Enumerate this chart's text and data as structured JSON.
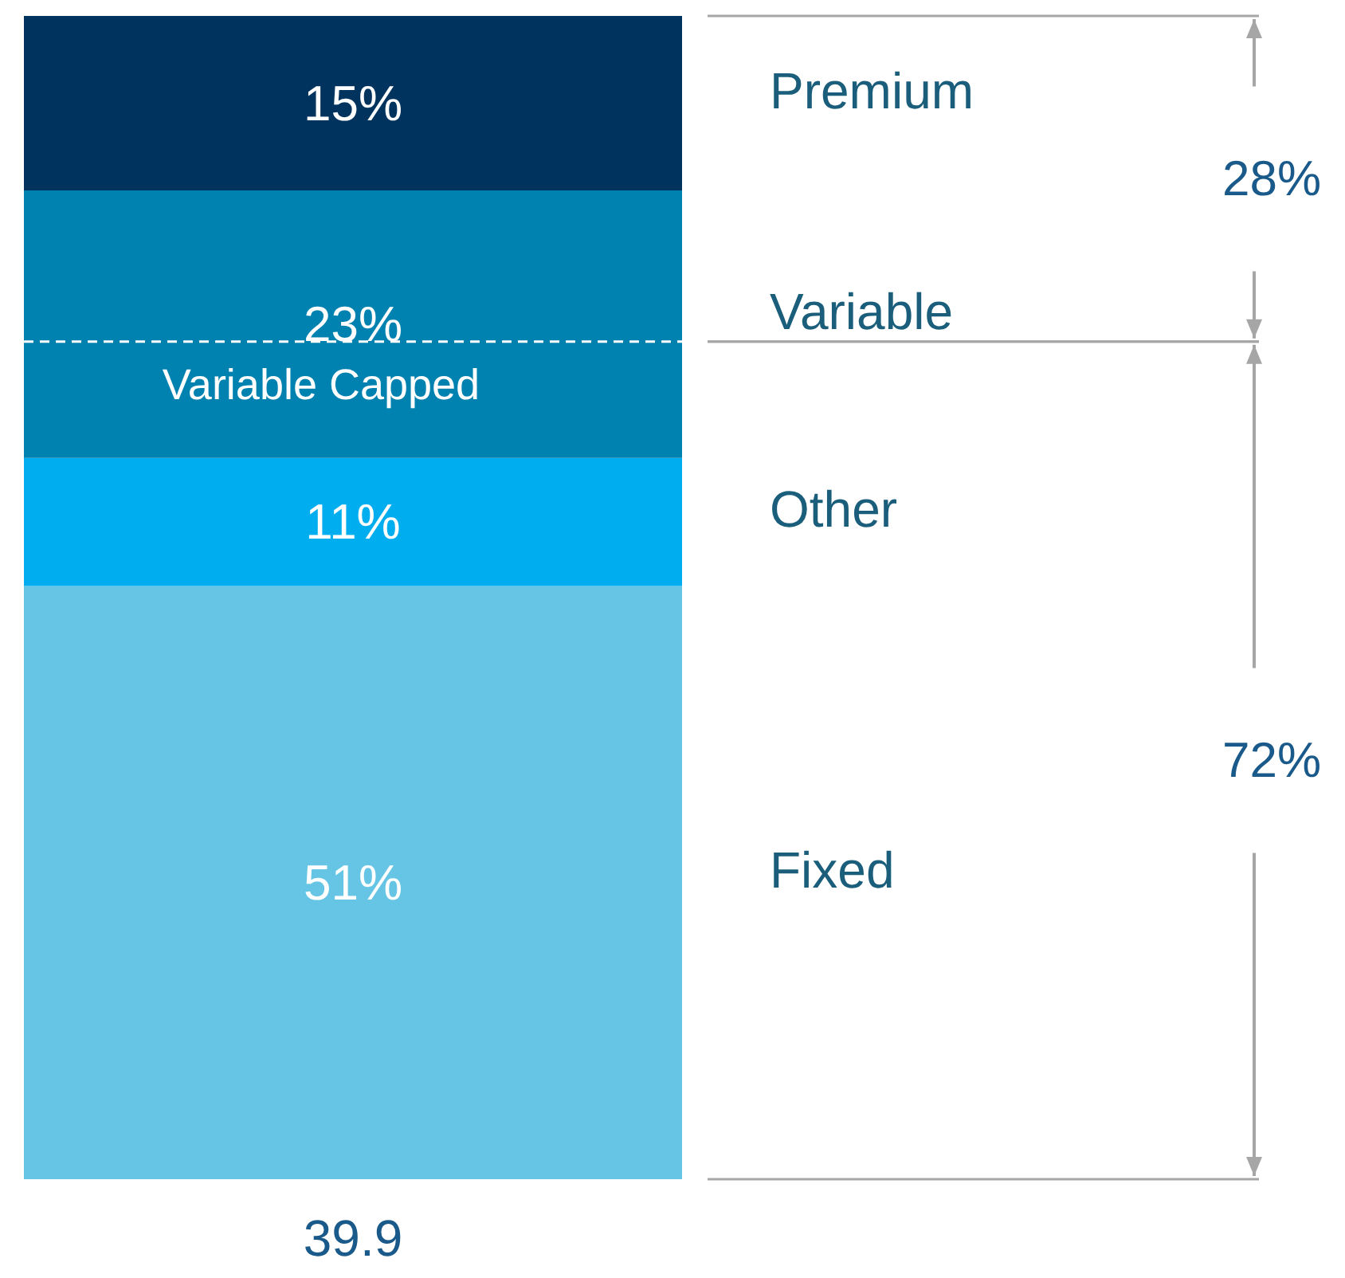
{
  "chart_data": {
    "type": "bar",
    "stacked": true,
    "categories": [
      null
    ],
    "series": [
      {
        "name": "Fixed",
        "color": "#66c5e4",
        "values": [
          51
        ],
        "value_labels": [
          "51%"
        ]
      },
      {
        "name": "Other",
        "color": "#00aeef",
        "values": [
          11
        ],
        "value_labels": [
          "11%"
        ]
      },
      {
        "name": "Variable",
        "color": "#0082b0",
        "values": [
          23
        ],
        "value_labels": [
          "23%"
        ]
      },
      {
        "name": "Premium",
        "color": "#00345e",
        "values": [
          15
        ],
        "value_labels": [
          "15%"
        ]
      }
    ],
    "ref_lines": [
      {
        "axis": "y",
        "value": 72,
        "label": "Variable Capped",
        "color": "#ffffff",
        "line_style": "dashed"
      }
    ],
    "annotations": [
      "28%",
      "72%",
      "39.9"
    ]
  }
}
